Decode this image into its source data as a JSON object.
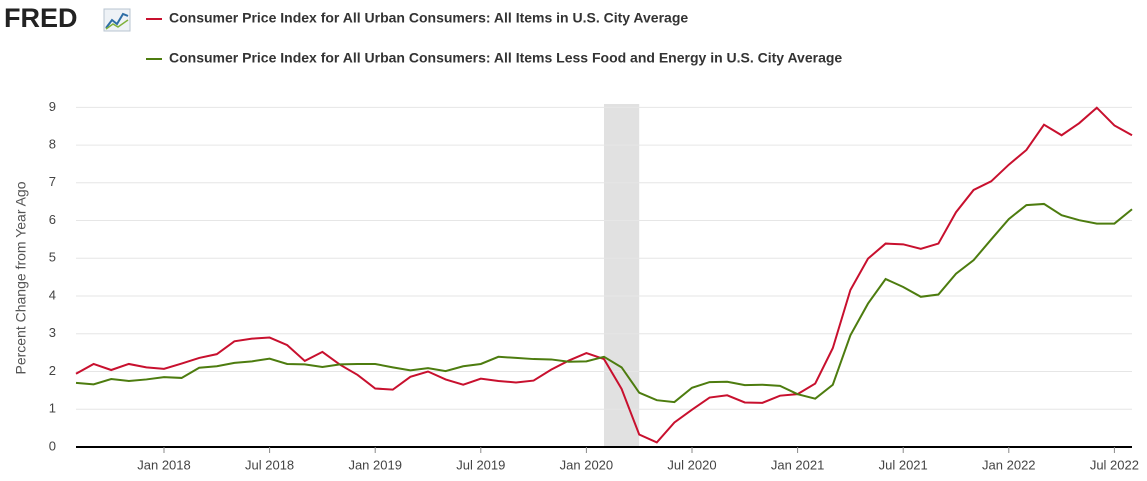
{
  "logo": "FRED",
  "chart_data": {
    "type": "line",
    "ylabel": "Percent Change from Year Ago",
    "x": [
      "2017-08",
      "2017-09",
      "2017-10",
      "2017-11",
      "2017-12",
      "2018-01",
      "2018-02",
      "2018-03",
      "2018-04",
      "2018-05",
      "2018-06",
      "2018-07",
      "2018-08",
      "2018-09",
      "2018-10",
      "2018-11",
      "2018-12",
      "2019-01",
      "2019-02",
      "2019-03",
      "2019-04",
      "2019-05",
      "2019-06",
      "2019-07",
      "2019-08",
      "2019-09",
      "2019-10",
      "2019-11",
      "2019-12",
      "2020-01",
      "2020-02",
      "2020-03",
      "2020-04",
      "2020-05",
      "2020-06",
      "2020-07",
      "2020-08",
      "2020-09",
      "2020-10",
      "2020-11",
      "2020-12",
      "2021-01",
      "2021-02",
      "2021-03",
      "2021-04",
      "2021-05",
      "2021-06",
      "2021-07",
      "2021-08",
      "2021-09",
      "2021-10",
      "2021-11",
      "2021-12",
      "2022-01",
      "2022-02",
      "2022-03",
      "2022-04",
      "2022-05",
      "2022-06",
      "2022-07",
      "2022-08"
    ],
    "series": [
      {
        "name": "Consumer Price Index for All Urban Consumers: All Items in U.S. City Average",
        "color": "#c8102e",
        "values": [
          1.94,
          2.2,
          2.04,
          2.2,
          2.11,
          2.07,
          2.21,
          2.36,
          2.46,
          2.8,
          2.87,
          2.9,
          2.7,
          2.28,
          2.52,
          2.18,
          1.91,
          1.55,
          1.52,
          1.86,
          2.0,
          1.79,
          1.65,
          1.81,
          1.75,
          1.71,
          1.76,
          2.05,
          2.29,
          2.49,
          2.33,
          1.54,
          0.33,
          0.12,
          0.65,
          0.99,
          1.31,
          1.37,
          1.18,
          1.17,
          1.36,
          1.4,
          1.68,
          2.62,
          4.16,
          4.99,
          5.39,
          5.37,
          5.25,
          5.39,
          6.22,
          6.81,
          7.04,
          7.48,
          7.87,
          8.54,
          8.26,
          8.58,
          8.99,
          8.52,
          8.26
        ]
      },
      {
        "name": "Consumer Price Index for All Urban Consumers: All Items Less Food and Energy in U.S. City Average",
        "color": "#4d7c0f",
        "values": [
          1.7,
          1.66,
          1.8,
          1.75,
          1.79,
          1.85,
          1.83,
          2.1,
          2.14,
          2.23,
          2.27,
          2.34,
          2.2,
          2.19,
          2.12,
          2.19,
          2.2,
          2.2,
          2.11,
          2.03,
          2.09,
          2.01,
          2.14,
          2.2,
          2.39,
          2.36,
          2.33,
          2.32,
          2.26,
          2.27,
          2.39,
          2.11,
          1.44,
          1.24,
          1.19,
          1.57,
          1.72,
          1.73,
          1.64,
          1.65,
          1.62,
          1.4,
          1.28,
          1.65,
          2.96,
          3.8,
          4.45,
          4.24,
          3.98,
          4.04,
          4.59,
          4.95,
          5.5,
          6.04,
          6.41,
          6.44,
          6.14,
          6.01,
          5.92,
          5.92,
          6.3
        ]
      }
    ],
    "xlim": [
      "2017-08",
      "2022-08"
    ],
    "xticks": [
      {
        "value": "2018-01",
        "label": "Jan 2018"
      },
      {
        "value": "2018-07",
        "label": "Jul 2018"
      },
      {
        "value": "2019-01",
        "label": "Jan 2019"
      },
      {
        "value": "2019-07",
        "label": "Jul 2019"
      },
      {
        "value": "2020-01",
        "label": "Jan 2020"
      },
      {
        "value": "2020-07",
        "label": "Jul 2020"
      },
      {
        "value": "2021-01",
        "label": "Jan 2021"
      },
      {
        "value": "2021-07",
        "label": "Jul 2021"
      },
      {
        "value": "2022-01",
        "label": "Jan 2022"
      },
      {
        "value": "2022-07",
        "label": "Jul 2022"
      }
    ],
    "ylim": [
      0,
      9.3
    ],
    "yticks": [
      0,
      1,
      2,
      3,
      4,
      5,
      6,
      7,
      8,
      9
    ],
    "grid": true,
    "recession": [
      "2020-02",
      "2020-04"
    ]
  }
}
